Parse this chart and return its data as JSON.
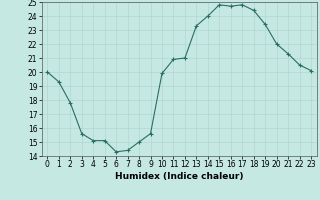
{
  "x": [
    0,
    1,
    2,
    3,
    4,
    5,
    6,
    7,
    8,
    9,
    10,
    11,
    12,
    13,
    14,
    15,
    16,
    17,
    18,
    19,
    20,
    21,
    22,
    23
  ],
  "y": [
    20.0,
    19.3,
    17.8,
    15.6,
    15.1,
    15.1,
    14.3,
    14.4,
    15.0,
    15.6,
    19.9,
    20.9,
    21.0,
    23.3,
    24.0,
    24.8,
    24.7,
    24.8,
    24.4,
    23.4,
    22.0,
    21.3,
    20.5,
    20.1
  ],
  "xlabel": "Humidex (Indice chaleur)",
  "ylim": [
    14,
    25
  ],
  "xlim_min": -0.5,
  "xlim_max": 23.5,
  "yticks": [
    14,
    15,
    16,
    17,
    18,
    19,
    20,
    21,
    22,
    23,
    24,
    25
  ],
  "xticks": [
    0,
    1,
    2,
    3,
    4,
    5,
    6,
    7,
    8,
    9,
    10,
    11,
    12,
    13,
    14,
    15,
    16,
    17,
    18,
    19,
    20,
    21,
    22,
    23
  ],
  "line_color": "#2a6e63",
  "marker_color": "#2a6e63",
  "bg_color": "#c5e8e2",
  "grid_color": "#b0d8d0",
  "tick_color": "#000000",
  "label_color": "#000000",
  "tick_fontsize": 5.5,
  "xlabel_fontsize": 6.5
}
